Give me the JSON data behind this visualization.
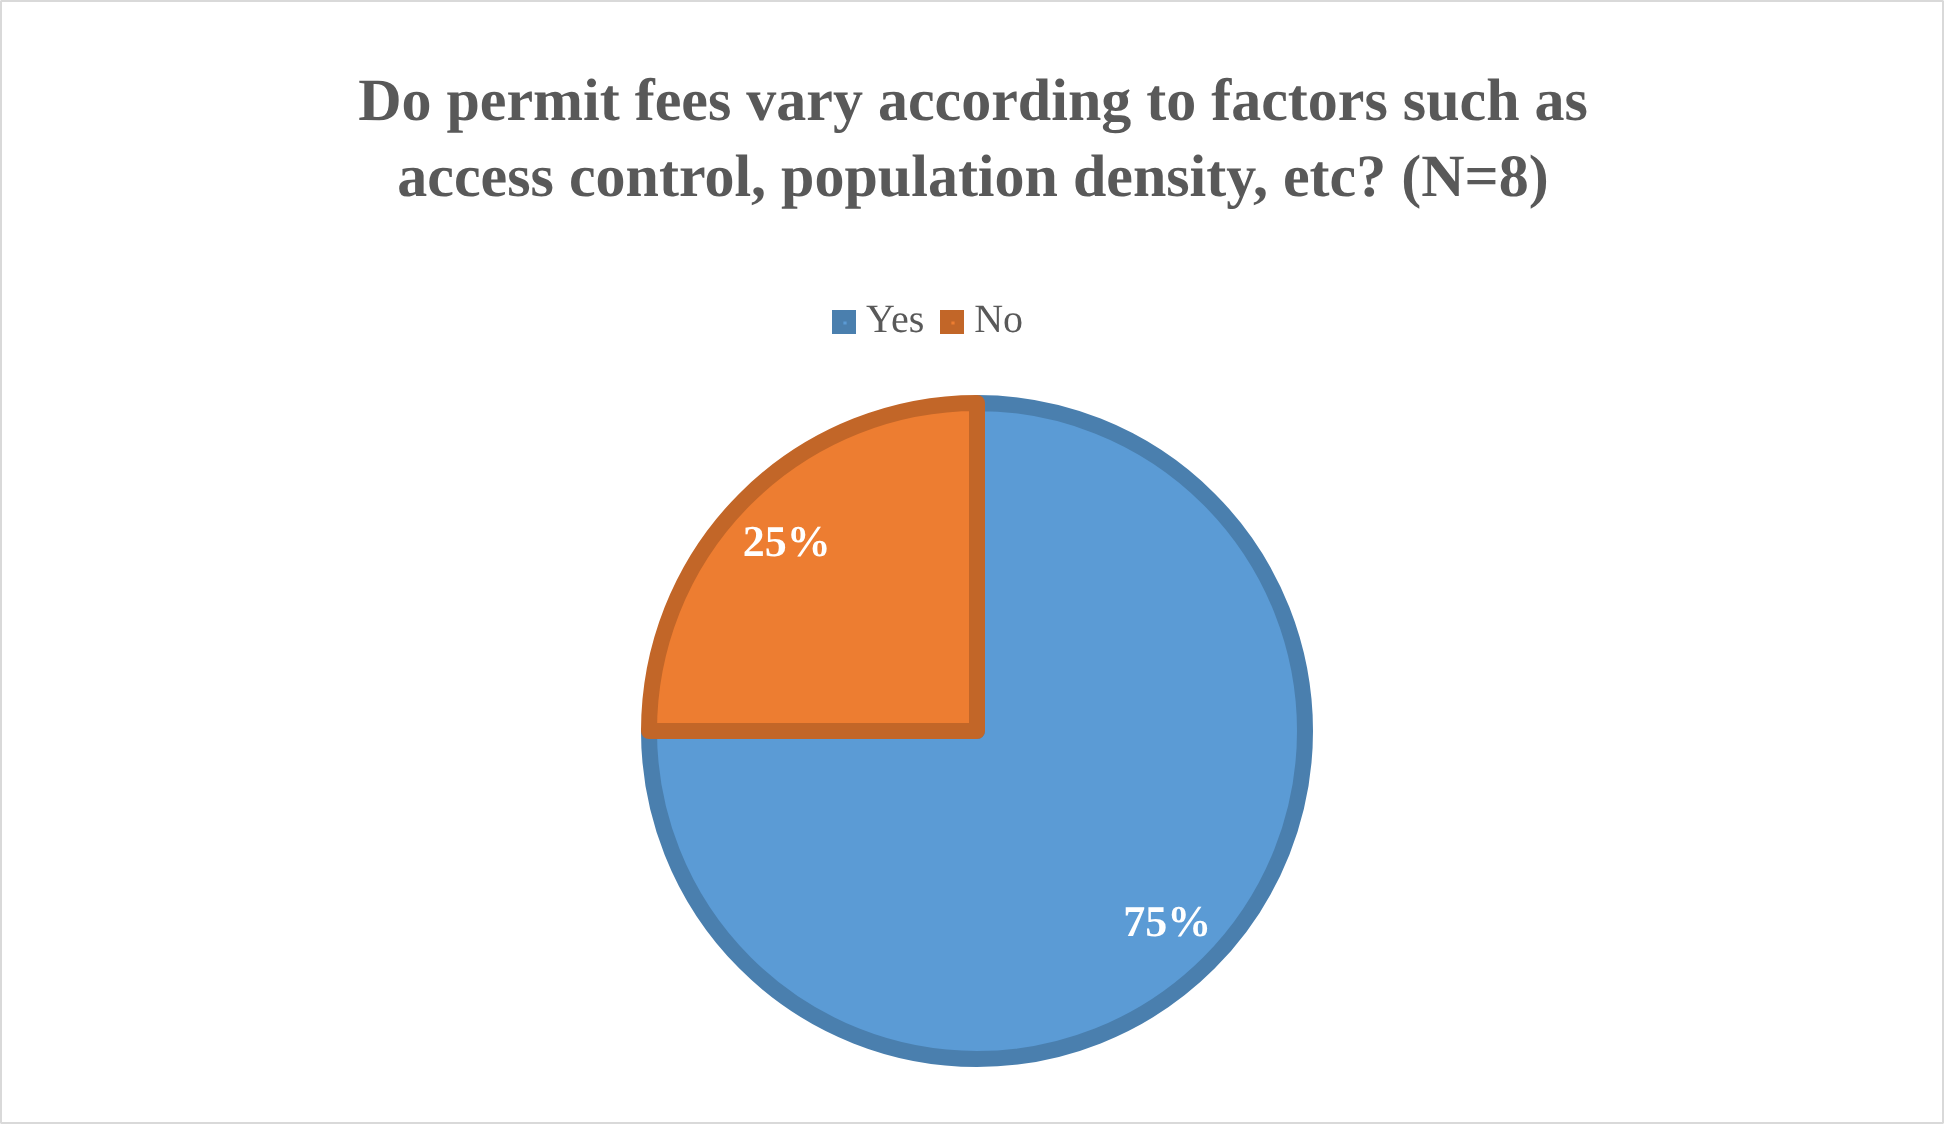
{
  "chart_data": {
    "type": "pie",
    "title": "Do permit fees vary according to factors such as access control, population density, etc? (N=8)",
    "categories": [
      "Yes",
      "No"
    ],
    "values": [
      75,
      25
    ],
    "colors": [
      "#5b9bd5",
      "#ed7d31"
    ],
    "value_labels": [
      "75%",
      "25%"
    ],
    "legend": "top"
  }
}
